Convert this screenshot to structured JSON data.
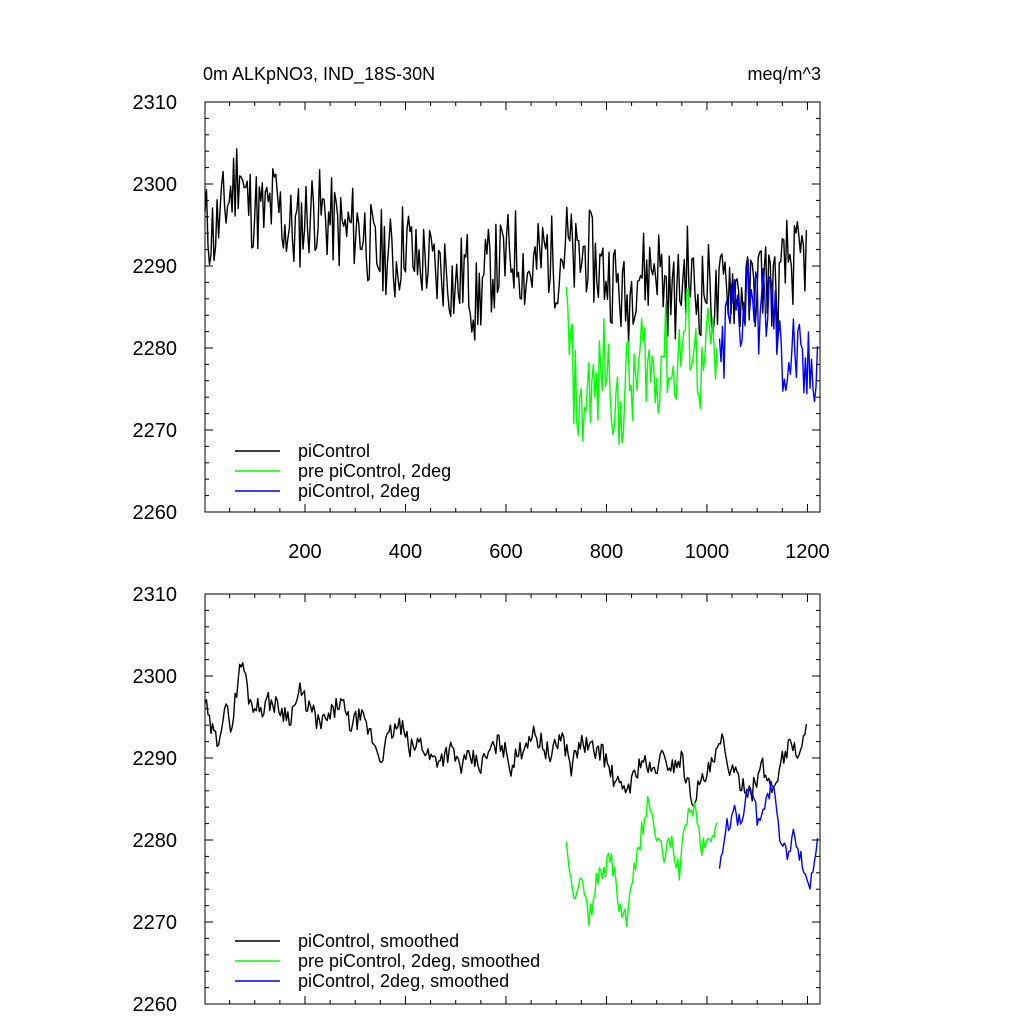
{
  "chart_data": [
    {
      "type": "line",
      "title": "0m ALKpNO3, IND_18S-30N",
      "units": "meq/m^3",
      "xlabel": "",
      "ylabel": "",
      "xlim": [
        1,
        1225
      ],
      "ylim": [
        2260,
        2310
      ],
      "xticks": [
        200,
        400,
        600,
        800,
        1000,
        1200
      ],
      "xtick_labels": [
        "200",
        "400",
        "600",
        "800",
        "1000",
        "1200"
      ],
      "yticks": [
        2260,
        2270,
        2280,
        2290,
        2300,
        2310
      ],
      "ytick_labels": [
        "2260",
        "2270",
        "2280",
        "2290",
        "2300",
        "2310"
      ],
      "legend_position": "bottom-left",
      "series": [
        {
          "name": "piControl",
          "color": "#000000",
          "x": [
            1,
            20,
            40,
            60,
            70,
            80,
            100,
            120,
            140,
            160,
            180,
            200,
            220,
            240,
            260,
            280,
            300,
            320,
            340,
            360,
            380,
            400,
            420,
            440,
            460,
            480,
            500,
            520,
            540,
            560,
            580,
            600,
            620,
            640,
            660,
            680,
            700,
            720,
            740,
            760,
            780,
            800,
            820,
            840,
            860,
            880,
            900,
            920,
            940,
            960,
            980,
            1000,
            1020,
            1040,
            1060,
            1080,
            1100,
            1120,
            1140,
            1160,
            1180,
            1200
          ],
          "values": [
            2295,
            2294,
            2297,
            2300,
            2303,
            2298,
            2297,
            2296,
            2298,
            2295,
            2294,
            2296,
            2297,
            2296,
            2295,
            2294,
            2295,
            2294,
            2291,
            2292,
            2290,
            2294,
            2290,
            2291,
            2289,
            2290,
            2287,
            2290,
            2285,
            2289,
            2290,
            2291,
            2292,
            2289,
            2290,
            2292,
            2290,
            2293,
            2290,
            2292,
            2290,
            2289,
            2288,
            2285,
            2290,
            2289,
            2291,
            2287,
            2286,
            2290,
            2286,
            2288,
            2285,
            2289,
            2287,
            2286,
            2288,
            2289,
            2286,
            2291,
            2290,
            2292
          ]
        },
        {
          "name": "pre piControl, 2deg",
          "color": "#00ff00",
          "x": [
            720,
            735,
            750,
            765,
            780,
            795,
            810,
            825,
            840,
            855,
            870,
            885,
            900,
            915,
            930,
            945,
            960,
            975,
            990,
            1005,
            1020
          ],
          "values": [
            2284,
            2276,
            2271,
            2276,
            2274,
            2279,
            2276,
            2270,
            2277,
            2274,
            2280,
            2278,
            2276,
            2281,
            2276,
            2279,
            2283,
            2280,
            2276,
            2281,
            2278
          ]
        },
        {
          "name": "piControl, 2deg",
          "color": "#0000ff",
          "x": [
            1025,
            1040,
            1055,
            1070,
            1085,
            1100,
            1115,
            1130,
            1145,
            1160,
            1175,
            1190,
            1205,
            1220
          ],
          "values": [
            2276,
            2283,
            2285,
            2284,
            2289,
            2284,
            2285,
            2286,
            2279,
            2278,
            2280,
            2276,
            2277,
            2279
          ]
        }
      ]
    },
    {
      "type": "line",
      "title": "",
      "xlabel": "",
      "ylabel": "",
      "xlim": [
        1,
        1225
      ],
      "ylim": [
        2260,
        2310
      ],
      "xticks": [
        200,
        400,
        600,
        800,
        1000,
        1200
      ],
      "yticks": [
        2260,
        2270,
        2280,
        2290,
        2300,
        2310
      ],
      "ytick_labels": [
        "2260",
        "2270",
        "2280",
        "2290",
        "2300",
        "2310"
      ],
      "legend_position": "bottom-left",
      "series": [
        {
          "name": "piControl, smoothed",
          "color": "#000000",
          "x": [
            1,
            10,
            25,
            40,
            55,
            65,
            75,
            90,
            110,
            130,
            150,
            170,
            190,
            210,
            230,
            250,
            270,
            290,
            310,
            330,
            350,
            370,
            390,
            410,
            430,
            450,
            470,
            490,
            510,
            530,
            550,
            570,
            590,
            610,
            630,
            650,
            670,
            690,
            710,
            730,
            750,
            770,
            790,
            810,
            830,
            850,
            870,
            890,
            910,
            930,
            950,
            970,
            990,
            1010,
            1030,
            1050,
            1070,
            1090,
            1110,
            1130,
            1150,
            1170,
            1185,
            1200
          ],
          "values": [
            2297,
            2294,
            2292,
            2296,
            2294,
            2299,
            2302,
            2297,
            2296,
            2297,
            2296,
            2295,
            2298,
            2296,
            2294,
            2295,
            2297,
            2294,
            2295,
            2293,
            2290,
            2293,
            2294,
            2291,
            2292,
            2290,
            2290,
            2291,
            2289,
            2290,
            2289,
            2291,
            2292,
            2289,
            2291,
            2293,
            2292,
            2290,
            2293,
            2289,
            2292,
            2291,
            2291,
            2288,
            2286,
            2287,
            2290,
            2288,
            2290,
            2289,
            2290,
            2285,
            2287,
            2289,
            2292,
            2288,
            2287,
            2286,
            2289,
            2286,
            2290,
            2292,
            2290,
            2294
          ]
        },
        {
          "name": "pre piControl, 2deg, smoothed",
          "color": "#00ff00",
          "x": [
            720,
            735,
            750,
            765,
            780,
            795,
            810,
            825,
            840,
            855,
            870,
            885,
            900,
            915,
            930,
            945,
            960,
            975,
            990,
            1005,
            1020
          ],
          "values": [
            2281,
            2272,
            2275,
            2270,
            2275,
            2276,
            2278,
            2272,
            2270,
            2276,
            2281,
            2285,
            2280,
            2278,
            2280,
            2276,
            2283,
            2284,
            2279,
            2280,
            2282
          ]
        },
        {
          "name": "piControl, 2deg, smoothed",
          "color": "#0000ff",
          "x": [
            1025,
            1040,
            1055,
            1070,
            1085,
            1100,
            1115,
            1130,
            1145,
            1160,
            1175,
            1190,
            1205,
            1220
          ],
          "values": [
            2276,
            2282,
            2283,
            2283,
            2287,
            2283,
            2284,
            2287,
            2280,
            2278,
            2281,
            2277,
            2275,
            2279
          ]
        }
      ]
    }
  ]
}
